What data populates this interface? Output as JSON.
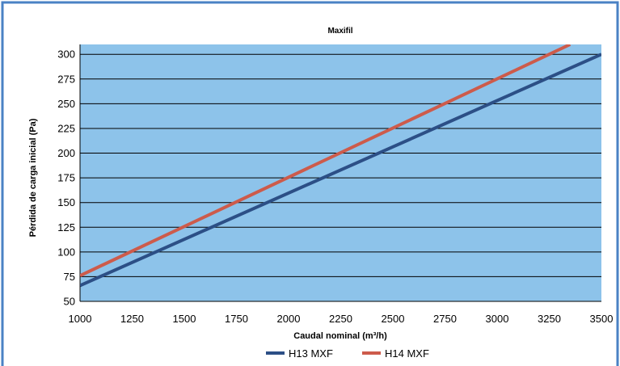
{
  "chart_data": {
    "type": "line",
    "title": "Maxifil",
    "xlabel": "Caudal nominal (m³/h)",
    "ylabel": "Pérdida de carga inicial (Pa)",
    "xlim": [
      1000,
      3500
    ],
    "ylim": [
      50,
      310
    ],
    "xticks": [
      "1000",
      "1250",
      "1500",
      "1750",
      "2000",
      "2250",
      "2500",
      "2750",
      "3000",
      "3250",
      "3500"
    ],
    "yticks": [
      "50",
      "75",
      "100",
      "125",
      "150",
      "175",
      "200",
      "225",
      "250",
      "275",
      "300"
    ],
    "grid": "horizontal",
    "legend": "bottom",
    "plot_background": "#8dc3ea",
    "series": [
      {
        "name": "H13 MXF",
        "color": "#2c4f86",
        "x": [
          1000,
          3500
        ],
        "y": [
          66,
          300
        ]
      },
      {
        "name": "H14 MXF",
        "color": "#cd5b4b",
        "x": [
          1000,
          3350
        ],
        "y": [
          76,
          310
        ]
      }
    ]
  },
  "frame_color": "#4a82c4"
}
